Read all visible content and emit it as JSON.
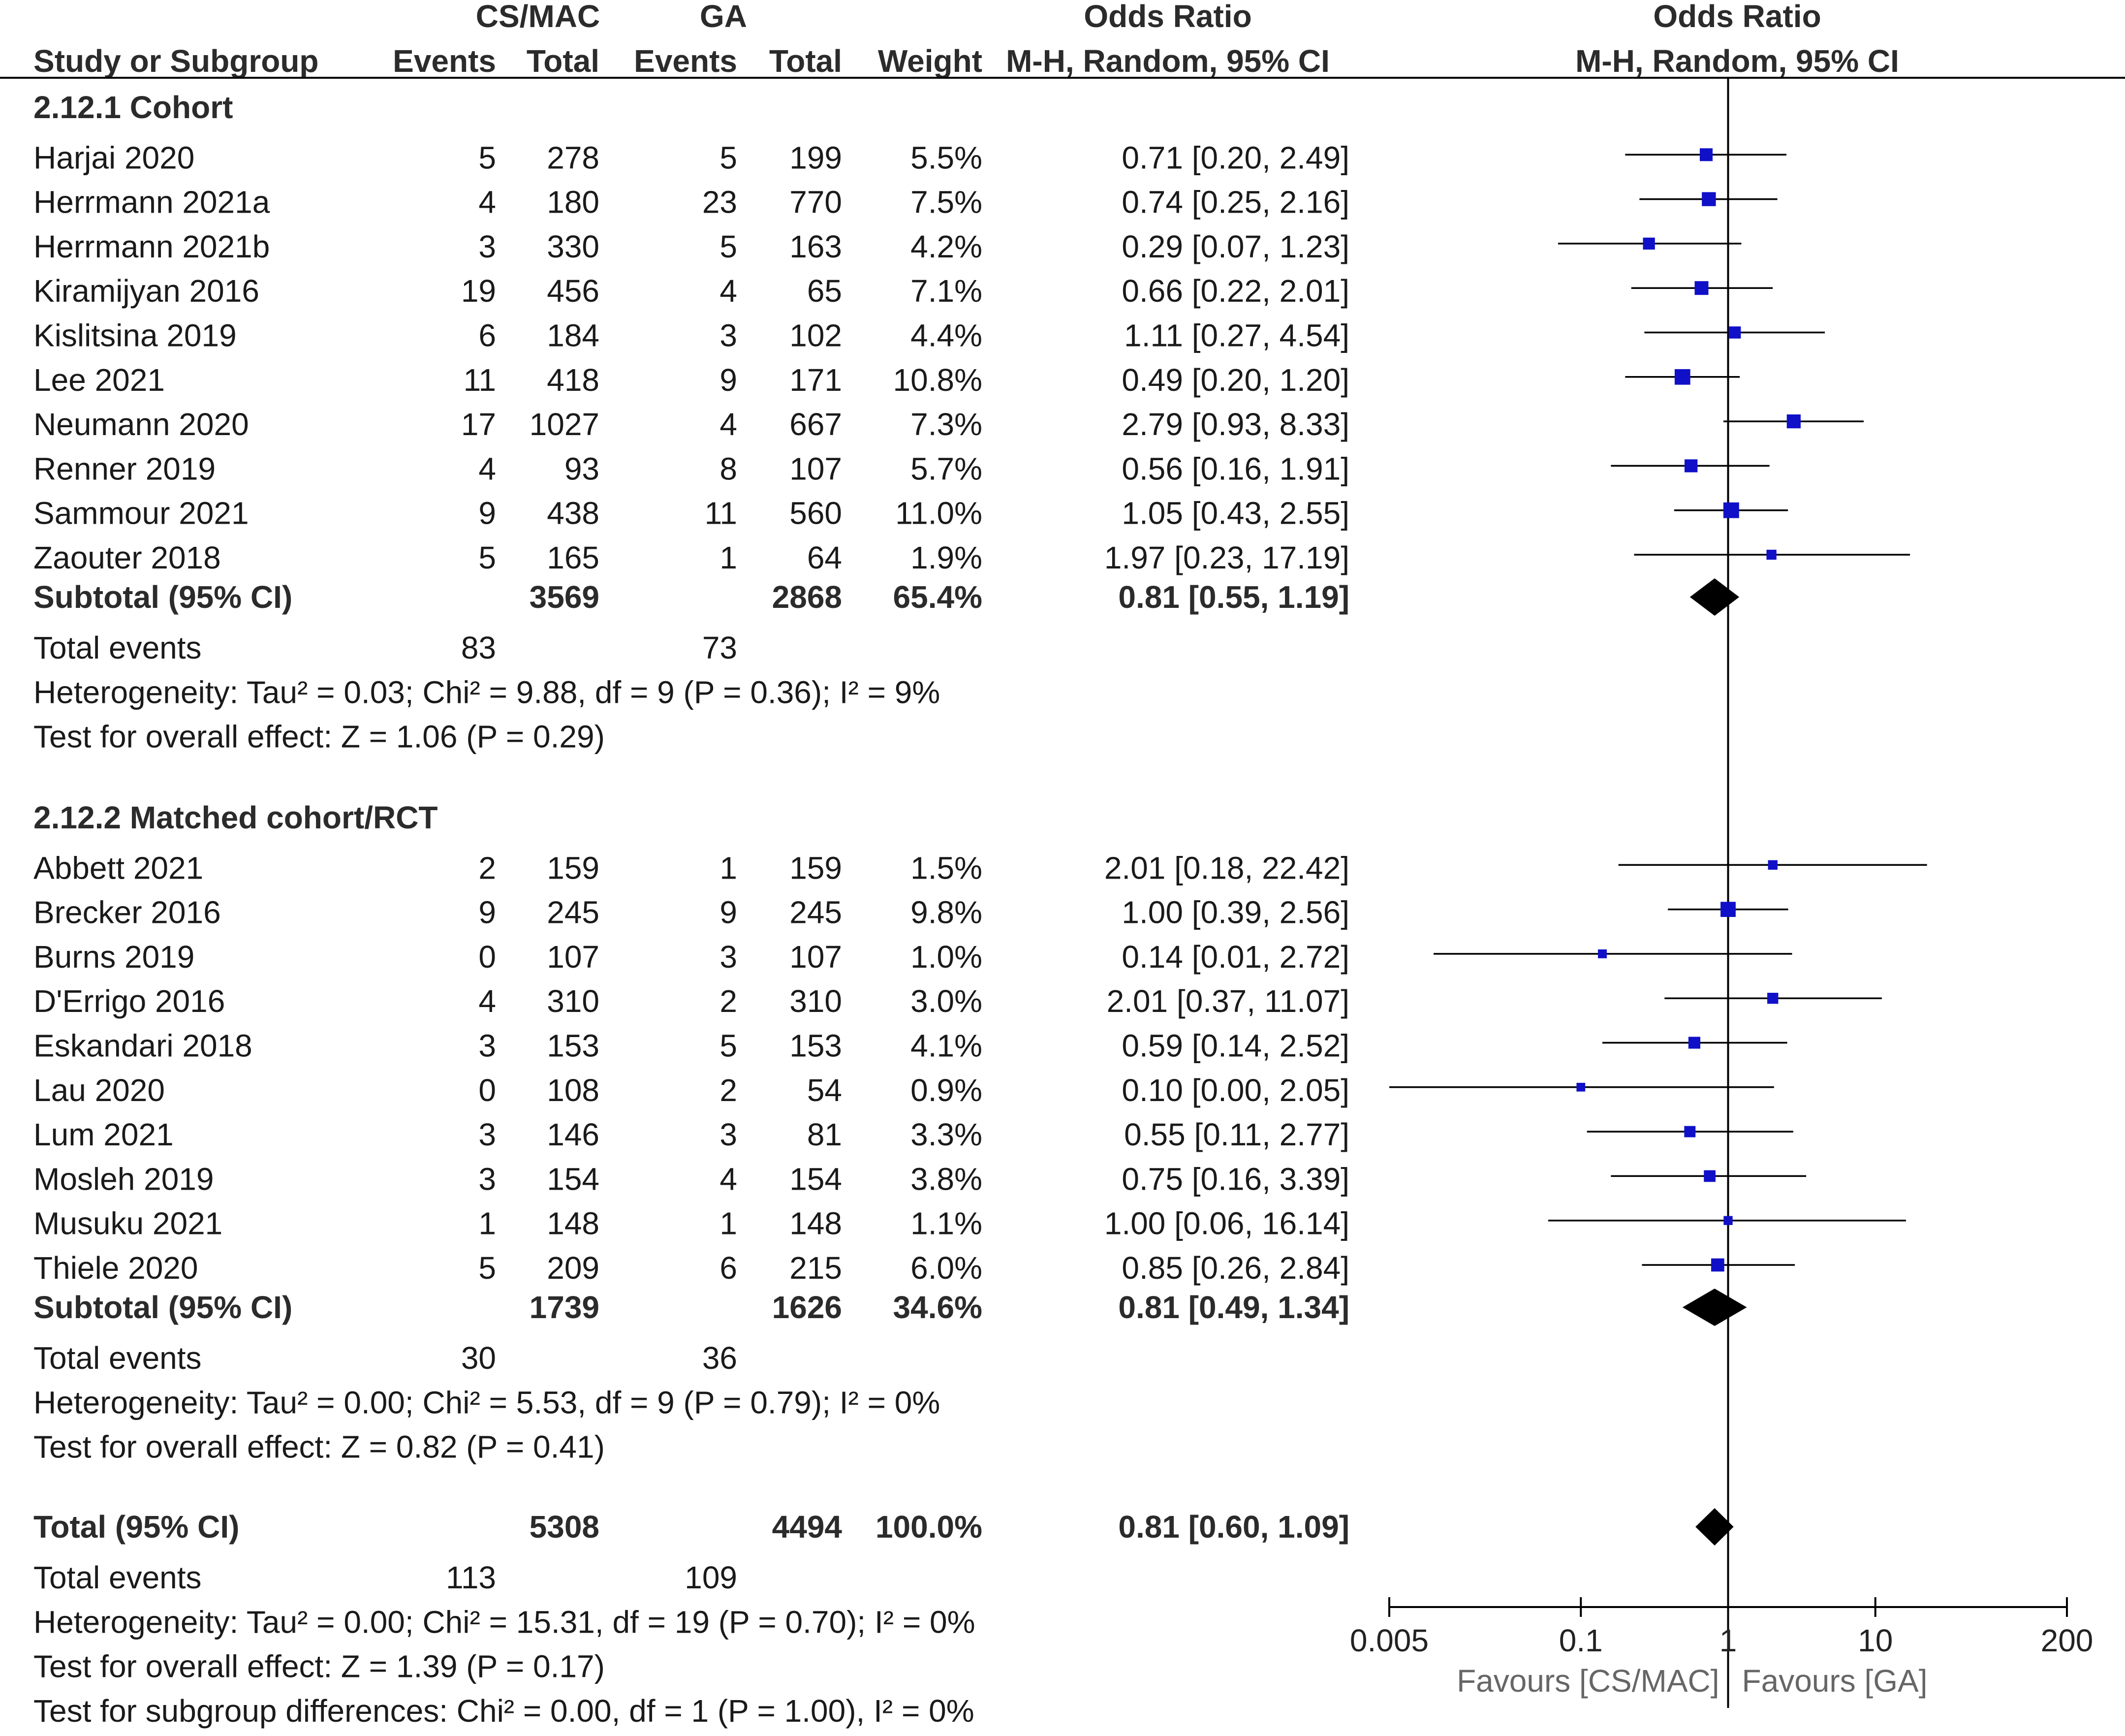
{
  "chart_data": {
    "type": "forest",
    "title": "",
    "columns": {
      "group1": "CS/MAC",
      "group2": "GA",
      "study": "Study or Subgroup",
      "events": "Events",
      "total": "Total",
      "weight": "Weight",
      "or_header": "Odds Ratio",
      "or_method": "M-H, Random, 95% CI",
      "plot_header": "Odds Ratio",
      "plot_method": "M-H, Random, 95% CI"
    },
    "axis": {
      "scale": "log",
      "ticks": [
        0.005,
        0.1,
        1,
        10,
        200
      ],
      "tick_labels": [
        "0.005",
        "0.1",
        "1",
        "10",
        "200"
      ],
      "range": [
        0.005,
        200
      ],
      "favours_left": "Favours [CS/MAC]",
      "favours_right": "Favours [GA]"
    },
    "subgroups": [
      {
        "title": "2.12.1 Cohort",
        "studies": [
          {
            "name": "Harjai 2020",
            "e1": "5",
            "t1": "278",
            "e2": "5",
            "t2": "199",
            "weight": "5.5%",
            "ci_text": "0.71 [0.20, 2.49]",
            "or": 0.71,
            "lo": 0.2,
            "hi": 2.49,
            "w": 5.5
          },
          {
            "name": "Herrmann 2021a",
            "e1": "4",
            "t1": "180",
            "e2": "23",
            "t2": "770",
            "weight": "7.5%",
            "ci_text": "0.74 [0.25, 2.16]",
            "or": 0.74,
            "lo": 0.25,
            "hi": 2.16,
            "w": 7.5
          },
          {
            "name": "Herrmann 2021b",
            "e1": "3",
            "t1": "330",
            "e2": "5",
            "t2": "163",
            "weight": "4.2%",
            "ci_text": "0.29 [0.07, 1.23]",
            "or": 0.29,
            "lo": 0.07,
            "hi": 1.23,
            "w": 4.2
          },
          {
            "name": "Kiramijyan 2016",
            "e1": "19",
            "t1": "456",
            "e2": "4",
            "t2": "65",
            "weight": "7.1%",
            "ci_text": "0.66 [0.22, 2.01]",
            "or": 0.66,
            "lo": 0.22,
            "hi": 2.01,
            "w": 7.1
          },
          {
            "name": "Kislitsina 2019",
            "e1": "6",
            "t1": "184",
            "e2": "3",
            "t2": "102",
            "weight": "4.4%",
            "ci_text": "1.11 [0.27, 4.54]",
            "or": 1.11,
            "lo": 0.27,
            "hi": 4.54,
            "w": 4.4
          },
          {
            "name": "Lee 2021",
            "e1": "11",
            "t1": "418",
            "e2": "9",
            "t2": "171",
            "weight": "10.8%",
            "ci_text": "0.49 [0.20, 1.20]",
            "or": 0.49,
            "lo": 0.2,
            "hi": 1.2,
            "w": 10.8
          },
          {
            "name": "Neumann 2020",
            "e1": "17",
            "t1": "1027",
            "e2": "4",
            "t2": "667",
            "weight": "7.3%",
            "ci_text": "2.79 [0.93, 8.33]",
            "or": 2.79,
            "lo": 0.93,
            "hi": 8.33,
            "w": 7.3
          },
          {
            "name": "Renner 2019",
            "e1": "4",
            "t1": "93",
            "e2": "8",
            "t2": "107",
            "weight": "5.7%",
            "ci_text": "0.56 [0.16, 1.91]",
            "or": 0.56,
            "lo": 0.16,
            "hi": 1.91,
            "w": 5.7
          },
          {
            "name": "Sammour 2021",
            "e1": "9",
            "t1": "438",
            "e2": "11",
            "t2": "560",
            "weight": "11.0%",
            "ci_text": "1.05 [0.43, 2.55]",
            "or": 1.05,
            "lo": 0.43,
            "hi": 2.55,
            "w": 11.0
          },
          {
            "name": "Zaouter 2018",
            "e1": "5",
            "t1": "165",
            "e2": "1",
            "t2": "64",
            "weight": "1.9%",
            "ci_text": "1.97 [0.23, 17.19]",
            "or": 1.97,
            "lo": 0.23,
            "hi": 17.19,
            "w": 1.9
          }
        ],
        "subtotal": {
          "label": "Subtotal (95% CI)",
          "t1": "3569",
          "t2": "2868",
          "weight": "65.4%",
          "ci_text": "0.81 [0.55, 1.19]",
          "or": 0.81,
          "lo": 0.55,
          "hi": 1.19
        },
        "total_events": {
          "label": "Total events",
          "e1": "83",
          "e2": "73"
        },
        "heterogeneity": "Heterogeneity: Tau² = 0.03; Chi² = 9.88, df = 9 (P = 0.36); I² = 9%",
        "overall": "Test for overall effect: Z = 1.06 (P = 0.29)"
      },
      {
        "title": "2.12.2 Matched cohort/RCT",
        "studies": [
          {
            "name": "Abbett 2021",
            "e1": "2",
            "t1": "159",
            "e2": "1",
            "t2": "159",
            "weight": "1.5%",
            "ci_text": "2.01 [0.18, 22.42]",
            "or": 2.01,
            "lo": 0.18,
            "hi": 22.42,
            "w": 1.5
          },
          {
            "name": "Brecker 2016",
            "e1": "9",
            "t1": "245",
            "e2": "9",
            "t2": "245",
            "weight": "9.8%",
            "ci_text": "1.00 [0.39, 2.56]",
            "or": 1.0,
            "lo": 0.39,
            "hi": 2.56,
            "w": 9.8
          },
          {
            "name": "Burns 2019",
            "e1": "0",
            "t1": "107",
            "e2": "3",
            "t2": "107",
            "weight": "1.0%",
            "ci_text": "0.14 [0.01, 2.72]",
            "or": 0.14,
            "lo": 0.01,
            "hi": 2.72,
            "w": 1.0
          },
          {
            "name": "D'Errigo 2016",
            "e1": "4",
            "t1": "310",
            "e2": "2",
            "t2": "310",
            "weight": "3.0%",
            "ci_text": "2.01 [0.37, 11.07]",
            "or": 2.01,
            "lo": 0.37,
            "hi": 11.07,
            "w": 3.0
          },
          {
            "name": "Eskandari 2018",
            "e1": "3",
            "t1": "153",
            "e2": "5",
            "t2": "153",
            "weight": "4.1%",
            "ci_text": "0.59 [0.14, 2.52]",
            "or": 0.59,
            "lo": 0.14,
            "hi": 2.52,
            "w": 4.1
          },
          {
            "name": "Lau 2020",
            "e1": "0",
            "t1": "108",
            "e2": "2",
            "t2": "54",
            "weight": "0.9%",
            "ci_text": "0.10 [0.00, 2.05]",
            "or": 0.1,
            "lo": 0.003,
            "hi": 2.05,
            "w": 0.9
          },
          {
            "name": "Lum 2021",
            "e1": "3",
            "t1": "146",
            "e2": "3",
            "t2": "81",
            "weight": "3.3%",
            "ci_text": "0.55 [0.11, 2.77]",
            "or": 0.55,
            "lo": 0.11,
            "hi": 2.77,
            "w": 3.3
          },
          {
            "name": "Mosleh 2019",
            "e1": "3",
            "t1": "154",
            "e2": "4",
            "t2": "154",
            "weight": "3.8%",
            "ci_text": "0.75 [0.16, 3.39]",
            "or": 0.75,
            "lo": 0.16,
            "hi": 3.39,
            "w": 3.8
          },
          {
            "name": "Musuku 2021",
            "e1": "1",
            "t1": "148",
            "e2": "1",
            "t2": "148",
            "weight": "1.1%",
            "ci_text": "1.00 [0.06, 16.14]",
            "or": 1.0,
            "lo": 0.06,
            "hi": 16.14,
            "w": 1.1
          },
          {
            "name": "Thiele 2020",
            "e1": "5",
            "t1": "209",
            "e2": "6",
            "t2": "215",
            "weight": "6.0%",
            "ci_text": "0.85 [0.26, 2.84]",
            "or": 0.85,
            "lo": 0.26,
            "hi": 2.84,
            "w": 6.0
          }
        ],
        "subtotal": {
          "label": "Subtotal (95% CI)",
          "t1": "1739",
          "t2": "1626",
          "weight": "34.6%",
          "ci_text": "0.81 [0.49, 1.34]",
          "or": 0.81,
          "lo": 0.49,
          "hi": 1.34
        },
        "total_events": {
          "label": "Total events",
          "e1": "30",
          "e2": "36"
        },
        "heterogeneity": "Heterogeneity: Tau² = 0.00; Chi² = 5.53, df = 9 (P = 0.79); I² = 0%",
        "overall": "Test for overall effect: Z = 0.82 (P = 0.41)"
      }
    ],
    "total": {
      "label": "Total (95% CI)",
      "t1": "5308",
      "t2": "4494",
      "weight": "100.0%",
      "ci_text": "0.81 [0.60, 1.09]",
      "or": 0.81,
      "lo": 0.6,
      "hi": 1.09
    },
    "total_events": {
      "label": "Total events",
      "e1": "113",
      "e2": "109"
    },
    "heterogeneity": "Heterogeneity: Tau² = 0.00; Chi² = 15.31, df = 19 (P = 0.70); I² = 0%",
    "overall": "Test for overall effect: Z = 1.39 (P = 0.17)",
    "subgroup_differences": "Test for subgroup differences: Chi² = 0.00, df = 1 (P = 1.00), I² = 0%",
    "colors": {
      "square": "#1010c8",
      "diamond": "#000000",
      "line": "#000000"
    }
  }
}
